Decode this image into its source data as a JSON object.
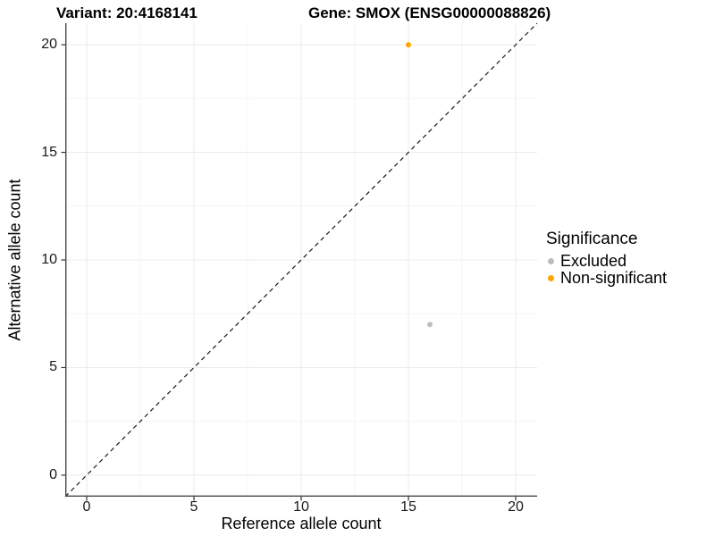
{
  "chart_data": {
    "type": "scatter",
    "titles": [
      "Variant: 20:4168141",
      "Gene: SMOX (ENSG00000088826)"
    ],
    "xlabel": "Reference allele count",
    "ylabel": "Alternative allele count",
    "xlim": [
      -1,
      21
    ],
    "ylim": [
      -1,
      21
    ],
    "xticks": [
      0,
      5,
      10,
      15,
      20
    ],
    "yticks": [
      0,
      5,
      10,
      15,
      20
    ],
    "grid": "major and minor gridlines on",
    "identity_line": {
      "slope": 1,
      "intercept": 0,
      "style": "dashed",
      "color": "#1a1a1a"
    },
    "series": [
      {
        "name": "Excluded",
        "color": "#BDBDBD",
        "points": [
          {
            "x": 16,
            "y": 7
          }
        ]
      },
      {
        "name": "Non-significant",
        "color": "#FFA500",
        "points": [
          {
            "x": 15,
            "y": 20
          }
        ]
      }
    ],
    "legend": {
      "title": "Significance",
      "position": "right"
    },
    "colors": {
      "grid_major": "#ebebeb",
      "grid_minor": "#f6f6f6",
      "axis_line": "#474747",
      "tick_mark": "#333333",
      "background": "#ffffff"
    }
  }
}
